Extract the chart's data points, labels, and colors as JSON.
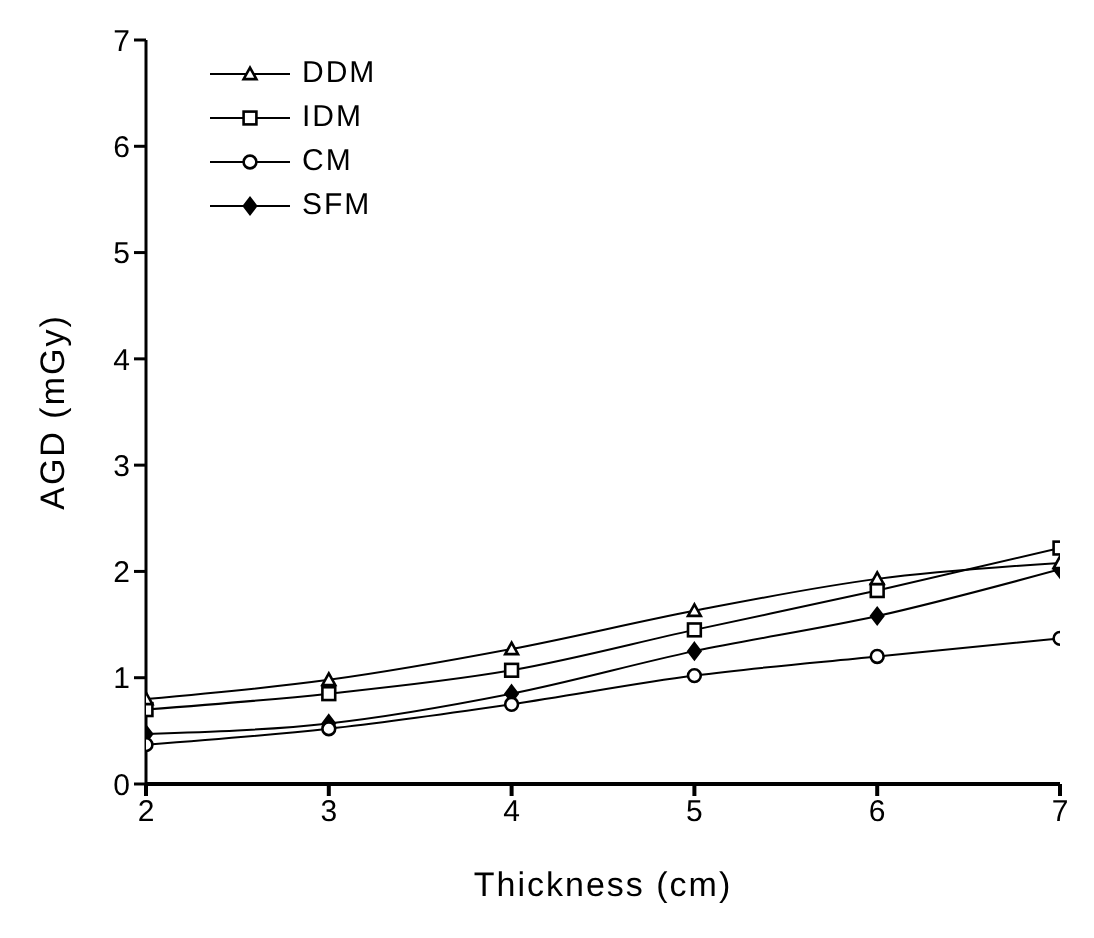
{
  "chart_data": {
    "type": "line",
    "xlabel": "Thickness (cm)",
    "ylabel": "AGD (mGy)",
    "x": [
      2,
      3,
      4,
      5,
      6,
      7
    ],
    "xlim": [
      2,
      7
    ],
    "xticks": [
      2,
      3,
      4,
      5,
      6,
      7
    ],
    "ylim": [
      0,
      7
    ],
    "yticks": [
      0,
      1,
      2,
      3,
      4,
      5,
      6,
      7
    ],
    "grid": false,
    "legend": "top left",
    "series": [
      {
        "name": "DDM",
        "color": "#000000",
        "marker": "triangle",
        "values": [
          0.8,
          0.98,
          1.27,
          1.63,
          1.93,
          2.08
        ]
      },
      {
        "name": "IDM",
        "color": "#000000",
        "marker": "square",
        "values": [
          0.7,
          0.85,
          1.07,
          1.45,
          1.82,
          2.22
        ]
      },
      {
        "name": "CM",
        "color": "#000000",
        "marker": "circle",
        "values": [
          0.37,
          0.52,
          0.75,
          1.02,
          1.2,
          1.37
        ]
      },
      {
        "name": "SFM",
        "color": "#000000",
        "marker": "diamond",
        "values": [
          0.47,
          0.57,
          0.85,
          1.25,
          1.58,
          2.02
        ]
      }
    ]
  }
}
